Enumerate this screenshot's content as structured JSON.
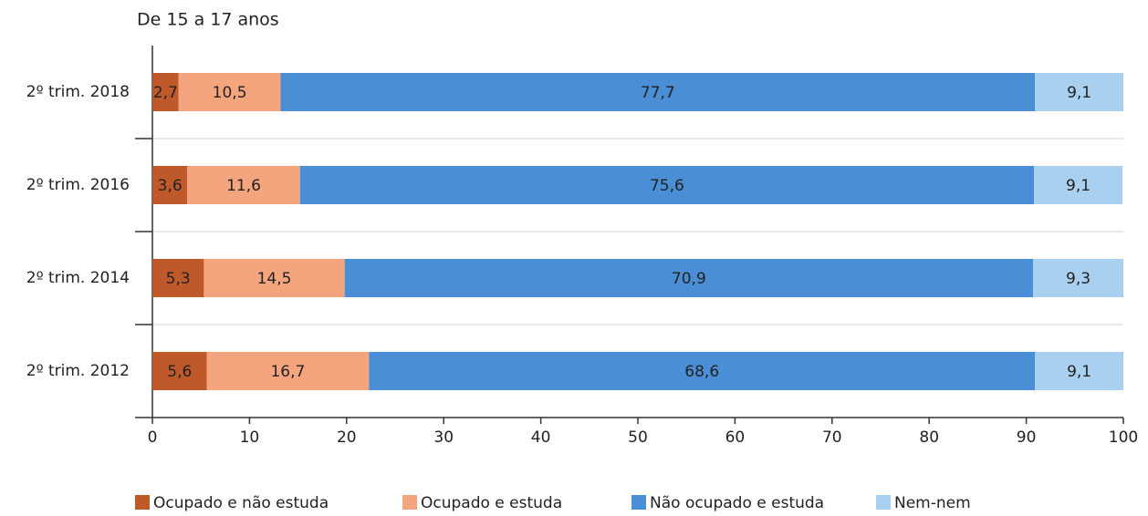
{
  "chart_data": {
    "type": "stacked_barh",
    "title": "De 15 a 17 anos",
    "categories": [
      "2º trim. 2018",
      "2º trim. 2016",
      "2º trim. 2014",
      "2º trim. 2012"
    ],
    "series": [
      {
        "name": "Ocupado e não estuda",
        "color": "#c0592a",
        "values": [
          2.7,
          3.6,
          5.3,
          5.6
        ],
        "value_labels": [
          "2,7",
          "3,6",
          "5,3",
          "5,6"
        ]
      },
      {
        "name": "Ocupado e estuda",
        "color": "#f5a57d",
        "values": [
          10.5,
          11.6,
          14.5,
          16.7
        ],
        "value_labels": [
          "10,5",
          "11,6",
          "14,5",
          "16,7"
        ]
      },
      {
        "name": "Não ocupado e estuda",
        "color": "#4a8fd6",
        "values": [
          77.7,
          75.6,
          70.9,
          68.6
        ],
        "value_labels": [
          "77,7",
          "75,6",
          "70,9",
          "68,6"
        ]
      },
      {
        "name": "Nem-nem",
        "color": "#a9d0ef",
        "values": [
          9.1,
          9.1,
          9.3,
          9.1
        ],
        "value_labels": [
          "9,1",
          "9,1",
          "9,3",
          "9,1"
        ]
      }
    ],
    "xlim": [
      0,
      100
    ],
    "xticks": [
      0,
      10,
      20,
      30,
      40,
      50,
      60,
      70,
      80,
      90,
      100
    ],
    "legend": "bottom"
  }
}
